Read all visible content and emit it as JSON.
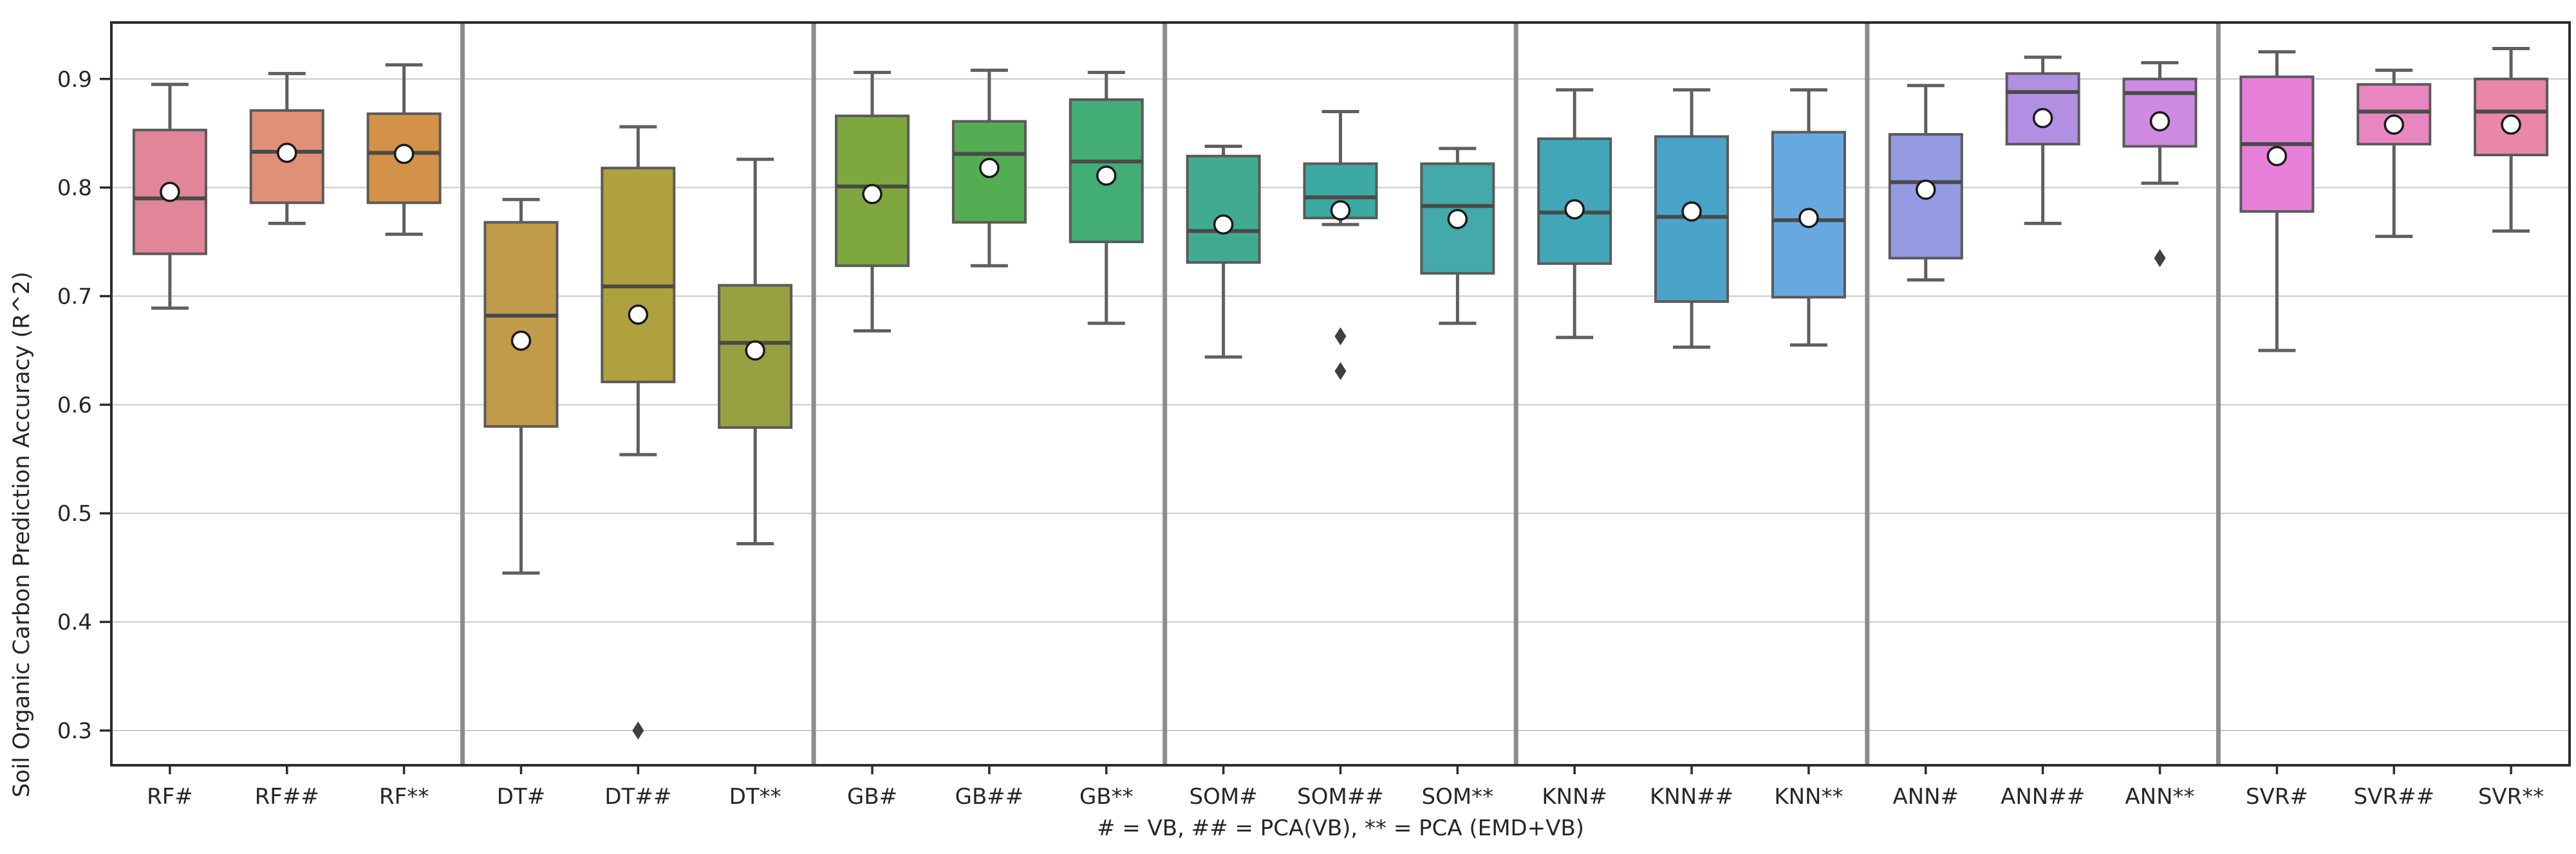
{
  "chart_data": {
    "type": "boxplot",
    "title": "",
    "ylabel": "Soil Organic Carbon Prediction Accuracy (R^2)",
    "xlabel": "# = VB, ## = PCA(VB), ** = PCA (EMD+VB)",
    "ylim": [
      0.268,
      0.952
    ],
    "yticks": [
      0.3,
      0.4,
      0.5,
      0.6,
      0.7,
      0.8,
      0.9
    ],
    "grid": true,
    "legend_position": "none",
    "group_size": 3,
    "groups": [
      "RF",
      "DT",
      "GB",
      "SOM",
      "KNN",
      "ANN",
      "SVR"
    ],
    "categories": [
      "RF#",
      "RF##",
      "RF**",
      "DT#",
      "DT##",
      "DT**",
      "GB#",
      "GB##",
      "GB**",
      "SOM#",
      "SOM##",
      "SOM**",
      "KNN#",
      "KNN##",
      "KNN**",
      "ANN#",
      "ANN##",
      "ANN**",
      "SVR#",
      "SVR##",
      "SVR**"
    ],
    "boxes": [
      {
        "label": "RF#",
        "whislo": 0.689,
        "q1": 0.739,
        "med": 0.79,
        "q3": 0.853,
        "whishi": 0.895,
        "mean": 0.796,
        "fliers": [],
        "color": "#e18599"
      },
      {
        "label": "RF##",
        "whislo": 0.767,
        "q1": 0.786,
        "med": 0.833,
        "q3": 0.871,
        "whishi": 0.905,
        "mean": 0.832,
        "fliers": [],
        "color": "#e09077"
      },
      {
        "label": "RF**",
        "whislo": 0.757,
        "q1": 0.786,
        "med": 0.832,
        "q3": 0.868,
        "whishi": 0.913,
        "mean": 0.831,
        "fliers": [],
        "color": "#d49249"
      },
      {
        "label": "DT#",
        "whislo": 0.445,
        "q1": 0.58,
        "med": 0.682,
        "q3": 0.768,
        "whishi": 0.789,
        "mean": 0.659,
        "fliers": [],
        "color": "#c09b4a"
      },
      {
        "label": "DT##",
        "whislo": 0.554,
        "q1": 0.621,
        "med": 0.709,
        "q3": 0.818,
        "whishi": 0.856,
        "mean": 0.683,
        "fliers": [
          0.3
        ],
        "color": "#b0a13f"
      },
      {
        "label": "DT**",
        "whislo": 0.472,
        "q1": 0.579,
        "med": 0.657,
        "q3": 0.71,
        "whishi": 0.826,
        "mean": 0.65,
        "fliers": [],
        "color": "#97a13f"
      },
      {
        "label": "GB#",
        "whislo": 0.668,
        "q1": 0.728,
        "med": 0.801,
        "q3": 0.866,
        "whishi": 0.906,
        "mean": 0.794,
        "fliers": [],
        "color": "#7fa73f"
      },
      {
        "label": "GB##",
        "whislo": 0.728,
        "q1": 0.768,
        "med": 0.831,
        "q3": 0.861,
        "whishi": 0.908,
        "mean": 0.818,
        "fliers": [],
        "color": "#55ad53"
      },
      {
        "label": "GB**",
        "whislo": 0.675,
        "q1": 0.75,
        "med": 0.824,
        "q3": 0.881,
        "whishi": 0.906,
        "mean": 0.811,
        "fliers": [],
        "color": "#43ad76"
      },
      {
        "label": "SOM#",
        "whislo": 0.644,
        "q1": 0.731,
        "med": 0.76,
        "q3": 0.829,
        "whishi": 0.838,
        "mean": 0.766,
        "fliers": [],
        "color": "#41ab92"
      },
      {
        "label": "SOM##",
        "whislo": 0.766,
        "q1": 0.772,
        "med": 0.791,
        "q3": 0.822,
        "whishi": 0.87,
        "mean": 0.779,
        "fliers": [
          0.663,
          0.631
        ],
        "color": "#3ca9a2"
      },
      {
        "label": "SOM**",
        "whislo": 0.675,
        "q1": 0.721,
        "med": 0.783,
        "q3": 0.822,
        "whishi": 0.836,
        "mean": 0.771,
        "fliers": [],
        "color": "#43a9ab"
      },
      {
        "label": "KNN#",
        "whislo": 0.662,
        "q1": 0.73,
        "med": 0.777,
        "q3": 0.845,
        "whishi": 0.89,
        "mean": 0.78,
        "fliers": [],
        "color": "#41a6b8"
      },
      {
        "label": "KNN##",
        "whislo": 0.653,
        "q1": 0.695,
        "med": 0.773,
        "q3": 0.847,
        "whishi": 0.89,
        "mean": 0.778,
        "fliers": [],
        "color": "#4aa3c8"
      },
      {
        "label": "KNN**",
        "whislo": 0.655,
        "q1": 0.699,
        "med": 0.77,
        "q3": 0.851,
        "whishi": 0.89,
        "mean": 0.772,
        "fliers": [],
        "color": "#68a8e0"
      },
      {
        "label": "ANN#",
        "whislo": 0.715,
        "q1": 0.735,
        "med": 0.805,
        "q3": 0.849,
        "whishi": 0.894,
        "mean": 0.798,
        "fliers": [],
        "color": "#949be2"
      },
      {
        "label": "ANN##",
        "whislo": 0.767,
        "q1": 0.84,
        "med": 0.888,
        "q3": 0.905,
        "whishi": 0.92,
        "mean": 0.864,
        "fliers": [],
        "color": "#b18fe2"
      },
      {
        "label": "ANN**",
        "whislo": 0.804,
        "q1": 0.838,
        "med": 0.887,
        "q3": 0.9,
        "whishi": 0.915,
        "mean": 0.861,
        "fliers": [
          0.735
        ],
        "color": "#cf8ae1"
      },
      {
        "label": "SVR#",
        "whislo": 0.65,
        "q1": 0.778,
        "med": 0.84,
        "q3": 0.902,
        "whishi": 0.925,
        "mean": 0.829,
        "fliers": [],
        "color": "#e67fd8"
      },
      {
        "label": "SVR##",
        "whislo": 0.755,
        "q1": 0.84,
        "med": 0.87,
        "q3": 0.895,
        "whishi": 0.908,
        "mean": 0.858,
        "fliers": [],
        "color": "#e886c0"
      },
      {
        "label": "SVR**",
        "whislo": 0.76,
        "q1": 0.83,
        "med": 0.87,
        "q3": 0.9,
        "whishi": 0.928,
        "mean": 0.858,
        "fliers": [],
        "color": "#ea86a8"
      }
    ],
    "style": {
      "grid_color": "#c9c9c9",
      "spine_color": "#2b2b2b",
      "separator_color": "#8c8c8c",
      "box_edge_color": "#5a5a5a",
      "whisker_color": "#5f5f5f",
      "median_color": "#4a4a4a",
      "mean_face_color": "#ffffff",
      "mean_edge_color": "#1a1a1a",
      "flier_color": "#3f3f3f",
      "tick_text_color": "#262626"
    }
  }
}
